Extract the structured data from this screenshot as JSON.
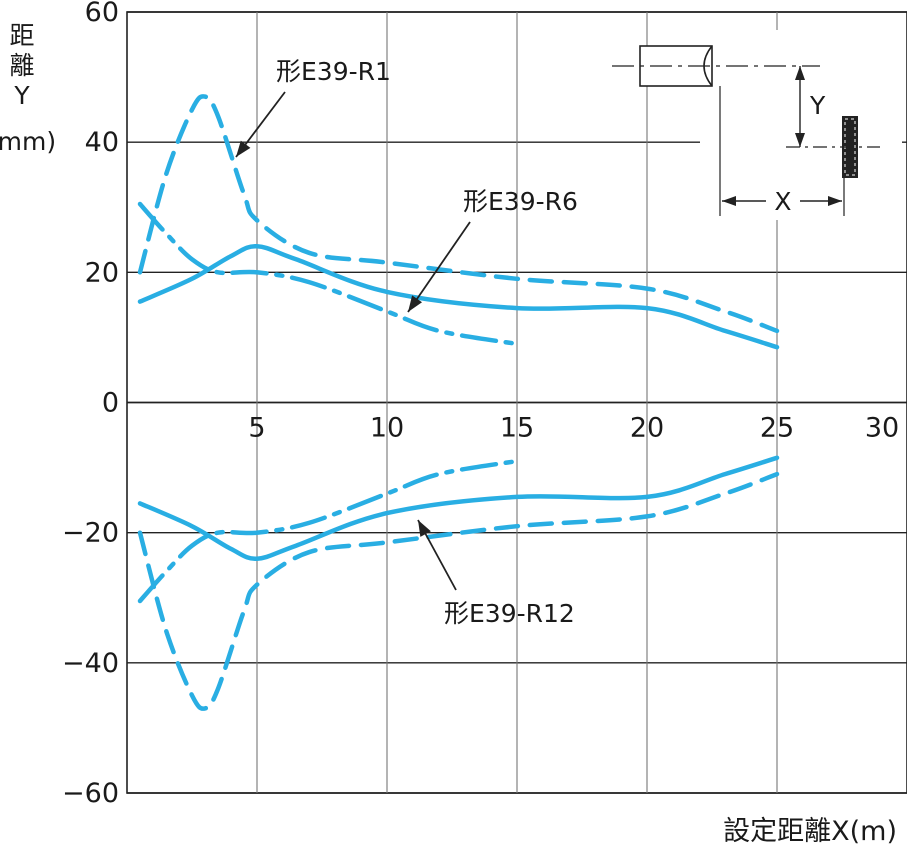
{
  "chart_data": {
    "type": "line",
    "title": "",
    "xlabel": "設定距離X(m)",
    "ylabel_chars": [
      "距",
      "離",
      "Y",
      "(mm)"
    ],
    "xlim": [
      0,
      30
    ],
    "ylim": [
      -60,
      60
    ],
    "x_ticks": [
      5,
      10,
      15,
      20,
      25,
      30
    ],
    "y_ticks": [
      60,
      40,
      20,
      0,
      -20,
      -40,
      -60
    ],
    "x_tick_labels": [
      "5",
      "10",
      "15",
      "20",
      "25",
      "30"
    ],
    "y_tick_labels": [
      "60",
      "40",
      "20",
      "0",
      "−20",
      "−40",
      "−60"
    ],
    "grid": true,
    "line_color": "#29aee3",
    "series": [
      {
        "name": "形E39-R1",
        "style": "dashed",
        "x": [
          0.5,
          1.5,
          2.5,
          3.0,
          3.5,
          4.5,
          5.0,
          7.0,
          10.0,
          15.0,
          20.0,
          23.0,
          25.0
        ],
        "upper": [
          20,
          35,
          45,
          47,
          44,
          32,
          28,
          23,
          21.5,
          19,
          17.5,
          14,
          11
        ],
        "lower": [
          -20,
          -35,
          -45,
          -47,
          -44,
          -32,
          -28,
          -23,
          -21.5,
          -19,
          -17.5,
          -14,
          -11
        ]
      },
      {
        "name": "形E39-R6",
        "style": "solid",
        "x": [
          0.5,
          2.5,
          4.0,
          5.0,
          6.5,
          10.0,
          15.0,
          20.0,
          23.0,
          25.0
        ],
        "upper": [
          15.5,
          19,
          22.5,
          24,
          22,
          17,
          14.5,
          14.5,
          11,
          8.5
        ],
        "lower": [
          -15.5,
          -19,
          -22.5,
          -24,
          -22,
          -17,
          -14.5,
          -14.5,
          -11,
          -8.5
        ]
      },
      {
        "name": "形E39-R12",
        "style": "dashdot",
        "x": [
          0.5,
          1.5,
          2.5,
          3.5,
          5.0,
          7.0,
          10.0,
          12.0,
          15.0
        ],
        "upper": [
          30.5,
          26,
          22,
          20,
          20,
          18.5,
          14,
          11,
          9
        ],
        "lower": [
          -30.5,
          -26,
          -22,
          -20,
          -20,
          -18.5,
          -14,
          -11,
          -9
        ]
      }
    ],
    "annotations": [
      {
        "text": "形E39-R1",
        "series": "形E39-R1"
      },
      {
        "text": "形E39-R6",
        "series": "形E39-R6"
      },
      {
        "text": "形E39-R12",
        "series": "形E39-R12"
      }
    ],
    "inset_labels": {
      "x": "X",
      "y": "Y"
    }
  }
}
